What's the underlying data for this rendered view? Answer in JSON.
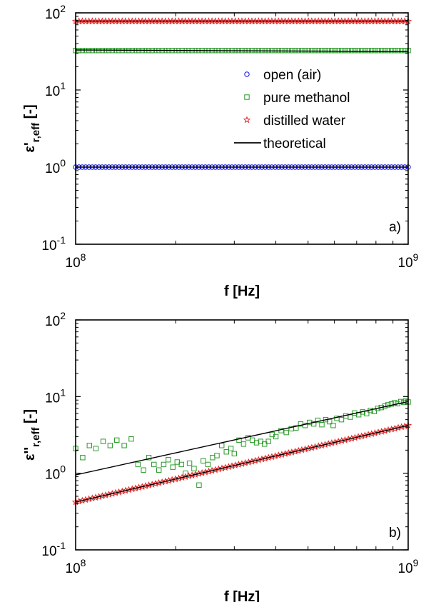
{
  "chart_data": [
    {
      "type": "scatter",
      "panel_label": "a)",
      "xlabel": "f [Hz]",
      "ylabel": {
        "base": "ε",
        "prime": "'",
        "sub": "r,eff",
        "unit": "[-]"
      },
      "xscale": "log",
      "yscale": "log",
      "xlim": [
        100000000,
        1000000000
      ],
      "ylim": [
        0.1,
        100
      ],
      "x_ticks": [
        {
          "base": "10",
          "exp": "8"
        },
        {
          "base": "10",
          "exp": "9"
        }
      ],
      "y_ticks": [
        {
          "base": "10",
          "exp": "-1"
        },
        {
          "base": "10",
          "exp": "0"
        },
        {
          "base": "10",
          "exp": "1"
        },
        {
          "base": "10",
          "exp": "2"
        }
      ],
      "grid": false,
      "legend_position": "center-right",
      "legend": [
        {
          "label": "open (air)",
          "marker": "circle",
          "color": "#1010ee"
        },
        {
          "label": "pure methanol",
          "marker": "square",
          "color": "#2a9a2a"
        },
        {
          "label": "distilled water",
          "marker": "star",
          "color": "#e02020"
        },
        {
          "label": "theoretical",
          "marker": "line",
          "color": "#000000"
        }
      ],
      "series": [
        {
          "name": "open (air)",
          "marker": "circle",
          "color": "#1010ee",
          "model": "constant",
          "value": 1.0
        },
        {
          "name": "pure methanol",
          "marker": "square",
          "color": "#2a9a2a",
          "model": "constant",
          "value": 32.5
        },
        {
          "name": "distilled water",
          "marker": "star",
          "color": "#e02020",
          "model": "constant",
          "value": 78.0
        },
        {
          "name": "theoretical",
          "marker": "line",
          "color": "#000000",
          "lines": [
            {
              "x": [
                100000000,
                1000000000
              ],
              "y": [
                1.0,
                1.0
              ]
            },
            {
              "x": [
                100000000,
                1000000000
              ],
              "y": [
                33.0,
                31.5
              ]
            },
            {
              "x": [
                100000000,
                1000000000
              ],
              "y": [
                78.0,
                78.0
              ]
            }
          ]
        }
      ]
    },
    {
      "type": "scatter",
      "panel_label": "b)",
      "xlabel": "f [Hz]",
      "ylabel": {
        "base": "ε",
        "prime": "''",
        "sub": "r,eff",
        "unit": "[-]"
      },
      "xscale": "log",
      "yscale": "log",
      "xlim": [
        100000000,
        1000000000
      ],
      "ylim": [
        0.1,
        100
      ],
      "x_ticks": [
        {
          "base": "10",
          "exp": "8"
        },
        {
          "base": "10",
          "exp": "9"
        }
      ],
      "y_ticks": [
        {
          "base": "10",
          "exp": "-1"
        },
        {
          "base": "10",
          "exp": "0"
        },
        {
          "base": "10",
          "exp": "1"
        },
        {
          "base": "10",
          "exp": "2"
        }
      ],
      "grid": false,
      "series": [
        {
          "name": "pure methanol",
          "marker": "square",
          "color": "#2a9a2a",
          "points": [
            [
              100000000.0,
              2.1
            ],
            [
              105000000.0,
              1.6
            ],
            [
              110000000.0,
              2.3
            ],
            [
              115000000.0,
              2.1
            ],
            [
              121000000.0,
              2.6
            ],
            [
              127000000.0,
              2.3
            ],
            [
              133000000.0,
              2.7
            ],
            [
              140000000.0,
              2.3
            ],
            [
              147000000.0,
              2.8
            ],
            [
              154000000.0,
              1.3
            ],
            [
              160000000.0,
              1.1
            ],
            [
              166000000.0,
              1.6
            ],
            [
              172000000.0,
              1.3
            ],
            [
              178000000.0,
              1.1
            ],
            [
              184000000.0,
              1.3
            ],
            [
              190000000.0,
              1.5
            ],
            [
              196000000.0,
              1.2
            ],
            [
              202000000.0,
              1.4
            ],
            [
              208000000.0,
              1.3
            ],
            [
              214000000.0,
              1.0
            ],
            [
              220000000.0,
              1.35
            ],
            [
              227000000.0,
              1.15
            ],
            [
              235000000.0,
              0.7
            ],
            [
              242000000.0,
              1.45
            ],
            [
              250000000.0,
              1.3
            ],
            [
              258000000.0,
              1.6
            ],
            [
              266000000.0,
              1.7
            ],
            [
              275000000.0,
              2.3
            ],
            [
              284000000.0,
              1.9
            ],
            [
              293000000.0,
              2.1
            ],
            [
              300000000.0,
              1.8
            ],
            [
              310000000.0,
              2.7
            ],
            [
              320000000.0,
              2.4
            ],
            [
              330000000.0,
              2.9
            ],
            [
              340000000.0,
              2.7
            ],
            [
              350000000.0,
              2.5
            ],
            [
              360000000.0,
              2.6
            ],
            [
              370000000.0,
              2.4
            ],
            [
              380000000.0,
              2.6
            ],
            [
              390000000.0,
              3.2
            ],
            [
              400000000.0,
              3.0
            ],
            [
              415000000.0,
              3.6
            ],
            [
              430000000.0,
              3.4
            ],
            [
              445000000.0,
              3.8
            ],
            [
              460000000.0,
              3.9
            ],
            [
              475000000.0,
              4.4
            ],
            [
              490000000.0,
              4.2
            ],
            [
              505000000.0,
              4.6
            ],
            [
              520000000.0,
              4.4
            ],
            [
              535000000.0,
              4.9
            ],
            [
              550000000.0,
              4.3
            ],
            [
              565000000.0,
              5.0
            ],
            [
              580000000.0,
              4.7
            ],
            [
              595000000.0,
              4.2
            ],
            [
              610000000.0,
              5.2
            ],
            [
              630000000.0,
              5.0
            ],
            [
              650000000.0,
              5.6
            ],
            [
              670000000.0,
              5.4
            ],
            [
              690000000.0,
              6.1
            ],
            [
              710000000.0,
              5.8
            ],
            [
              730000000.0,
              6.3
            ],
            [
              750000000.0,
              6.0
            ],
            [
              770000000.0,
              6.6
            ],
            [
              790000000.0,
              6.4
            ],
            [
              810000000.0,
              7.0
            ],
            [
              830000000.0,
              7.2
            ],
            [
              850000000.0,
              7.5
            ],
            [
              870000000.0,
              7.8
            ],
            [
              890000000.0,
              8.0
            ],
            [
              910000000.0,
              8.3
            ],
            [
              930000000.0,
              8.1
            ],
            [
              950000000.0,
              8.6
            ],
            [
              970000000.0,
              8.4
            ],
            [
              985000000.0,
              8.8
            ],
            [
              1000000000.0,
              8.5
            ]
          ]
        },
        {
          "name": "distilled water",
          "marker": "star",
          "color": "#e02020",
          "model": "power",
          "y_at_xmin": 0.42,
          "y_at_xmax": 4.2
        },
        {
          "name": "theoretical",
          "marker": "line",
          "color": "#000000",
          "lines": [
            {
              "x": [
                100000000,
                1000000000
              ],
              "y": [
                0.95,
                8.6
              ]
            },
            {
              "x": [
                100000000,
                1000000000
              ],
              "y": [
                0.42,
                4.2
              ]
            }
          ]
        }
      ]
    }
  ]
}
